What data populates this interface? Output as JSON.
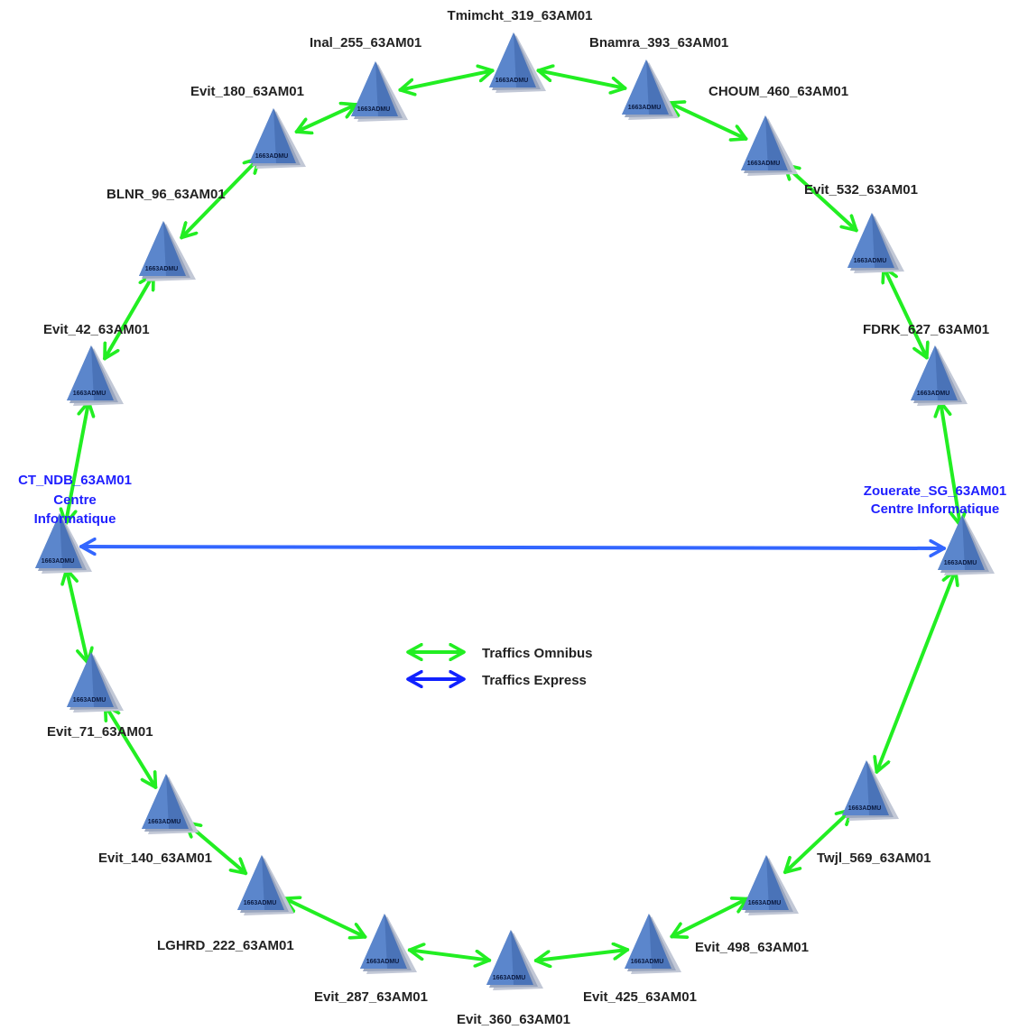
{
  "colors": {
    "omnibus": "#22ee22",
    "express": "#3366ff",
    "legend_express": "#1122ff",
    "node_fill": "#4a73b8",
    "node_shade": "#c2c8d6",
    "label": "#222222",
    "hub_label": "#1f1fff"
  },
  "device_model": "1663ADMU",
  "nodes": [
    {
      "id": "tmimcht",
      "label": [
        "Tmimcht_319_63AM01"
      ]
    },
    {
      "id": "bnamra",
      "label": [
        "Bnamra_393_63AM01"
      ]
    },
    {
      "id": "choum",
      "label": [
        "CHOUM_460_63AM01"
      ]
    },
    {
      "id": "evit532",
      "label": [
        "Evit_532_63AM01"
      ]
    },
    {
      "id": "fdrk",
      "label": [
        "FDRK_627_63AM01"
      ]
    },
    {
      "id": "zouerate",
      "label": [
        "Zouerate_SG_63AM01",
        "Centre Informatique"
      ],
      "hub": true
    },
    {
      "id": "twjl",
      "label": [
        "Twjl_569_63AM01"
      ]
    },
    {
      "id": "evit498",
      "label": [
        "Evit_498_63AM01"
      ]
    },
    {
      "id": "evit425",
      "label": [
        "Evit_425_63AM01"
      ]
    },
    {
      "id": "evit360",
      "label": [
        "Evit_360_63AM01"
      ]
    },
    {
      "id": "evit287",
      "label": [
        "Evit_287_63AM01"
      ]
    },
    {
      "id": "lghrd",
      "label": [
        "LGHRD_222_63AM01"
      ]
    },
    {
      "id": "evit140",
      "label": [
        "Evit_140_63AM01"
      ]
    },
    {
      "id": "evit71",
      "label": [
        "Evit_71_63AM01"
      ]
    },
    {
      "id": "ctndb",
      "label": [
        "CT_NDB_63AM01",
        "Centre",
        "Informatique"
      ],
      "hub": true
    },
    {
      "id": "evit42",
      "label": [
        "Evit_42_63AM01"
      ]
    },
    {
      "id": "blnr",
      "label": [
        "BLNR_96_63AM01"
      ]
    },
    {
      "id": "evit180",
      "label": [
        "Evit_180_63AM01"
      ]
    },
    {
      "id": "inal",
      "label": [
        "Inal_255_63AM01"
      ]
    }
  ],
  "links": [
    {
      "from": "tmimcht",
      "to": "bnamra",
      "type": "omnibus"
    },
    {
      "from": "bnamra",
      "to": "choum",
      "type": "omnibus"
    },
    {
      "from": "choum",
      "to": "evit532",
      "type": "omnibus"
    },
    {
      "from": "evit532",
      "to": "fdrk",
      "type": "omnibus"
    },
    {
      "from": "fdrk",
      "to": "zouerate",
      "type": "omnibus"
    },
    {
      "from": "zouerate",
      "to": "twjl",
      "type": "omnibus"
    },
    {
      "from": "twjl",
      "to": "evit498",
      "type": "omnibus"
    },
    {
      "from": "evit498",
      "to": "evit425",
      "type": "omnibus"
    },
    {
      "from": "evit425",
      "to": "evit360",
      "type": "omnibus"
    },
    {
      "from": "evit360",
      "to": "evit287",
      "type": "omnibus"
    },
    {
      "from": "evit287",
      "to": "lghrd",
      "type": "omnibus"
    },
    {
      "from": "lghrd",
      "to": "evit140",
      "type": "omnibus"
    },
    {
      "from": "evit140",
      "to": "evit71",
      "type": "omnibus"
    },
    {
      "from": "evit71",
      "to": "ctndb",
      "type": "omnibus"
    },
    {
      "from": "ctndb",
      "to": "evit42",
      "type": "omnibus"
    },
    {
      "from": "evit42",
      "to": "blnr",
      "type": "omnibus"
    },
    {
      "from": "blnr",
      "to": "evit180",
      "type": "omnibus"
    },
    {
      "from": "evit180",
      "to": "inal",
      "type": "omnibus"
    },
    {
      "from": "inal",
      "to": "tmimcht",
      "type": "omnibus"
    },
    {
      "from": "ctndb",
      "to": "zouerate",
      "type": "express"
    }
  ],
  "legend": [
    {
      "type": "omnibus",
      "label": "Traffics Omnibus"
    },
    {
      "type": "express",
      "label": "Traffics Express"
    }
  ]
}
